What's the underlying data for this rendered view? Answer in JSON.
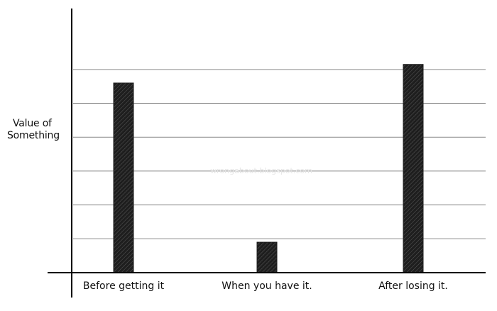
{
  "chart_data": {
    "type": "bar",
    "categories": [
      "Before getting it",
      "When you have it.",
      "After losing it."
    ],
    "values": [
      5.6,
      0.9,
      6.15
    ],
    "ylabel": "Value of Something",
    "ylabel_lines": [
      "Value of",
      "Something"
    ],
    "xlabel": "",
    "ylim": [
      0,
      7.8
    ],
    "gridlines": [
      1,
      2,
      3,
      4,
      5,
      6
    ],
    "grid": true,
    "legend": "none",
    "watermark": "wrongabout.blogspot.com",
    "colors": {
      "bar": "#1e1e1e",
      "hatch": "#5a5a5a",
      "axis": "#000000",
      "grid": "#8c8c8c"
    }
  }
}
